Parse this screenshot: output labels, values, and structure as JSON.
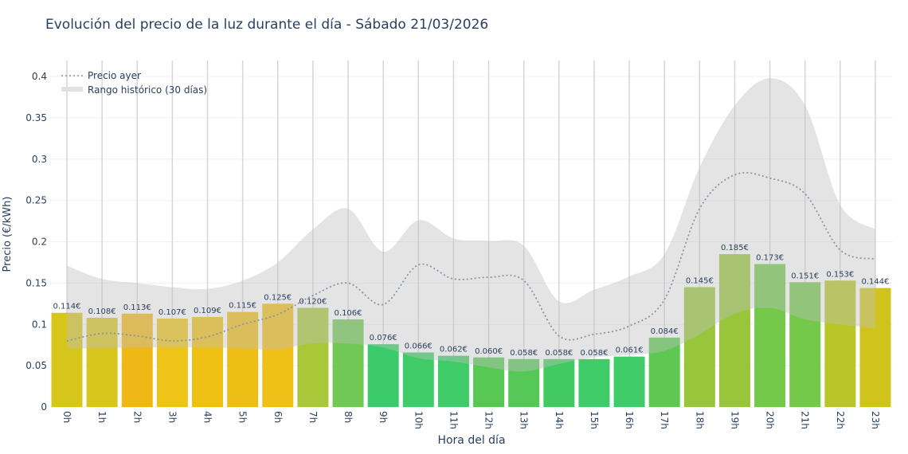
{
  "chart_data": {
    "type": "bar",
    "title": "Evolución del precio de la luz durante el día - Sábado 21/03/2026",
    "xlabel": "Hora del día",
    "ylabel": "Precio (€/kWh)",
    "ylim": [
      0,
      0.42
    ],
    "yticks": [
      0,
      0.05,
      0.1,
      0.15,
      0.2,
      0.25,
      0.3,
      0.35,
      0.4
    ],
    "ytick_labels": [
      "0",
      "0.05",
      "0.1",
      "0.15",
      "0.2",
      "0.25",
      "0.3",
      "0.35",
      "0.4"
    ],
    "grid": true,
    "legend_position": "top-left",
    "categories": [
      "0h",
      "1h",
      "2h",
      "3h",
      "4h",
      "5h",
      "6h",
      "7h",
      "8h",
      "9h",
      "10h",
      "11h",
      "12h",
      "13h",
      "14h",
      "15h",
      "16h",
      "17h",
      "18h",
      "19h",
      "20h",
      "21h",
      "22h",
      "23h"
    ],
    "values": [
      0.114,
      0.108,
      0.113,
      0.107,
      0.109,
      0.115,
      0.125,
      0.12,
      0.106,
      0.076,
      0.066,
      0.062,
      0.06,
      0.058,
      0.058,
      0.058,
      0.061,
      0.084,
      0.145,
      0.185,
      0.173,
      0.151,
      0.153,
      0.144
    ],
    "data_labels": [
      "0.114€",
      "0.108€",
      "0.113€",
      "0.107€",
      "0.109€",
      "0.115€",
      "0.125€",
      "0.120€",
      "0.106€",
      "0.076€",
      "0.066€",
      "0.062€",
      "0.060€",
      "0.058€",
      "0.058€",
      "0.058€",
      "0.061€",
      "0.084€",
      "0.145€",
      "0.185€",
      "0.173€",
      "0.151€",
      "0.153€",
      "0.144€"
    ],
    "bar_colors": [
      "#d6c61c",
      "#d8c61e",
      "#f0b816",
      "#eec418",
      "#efc014",
      "#efbe16",
      "#f0c018",
      "#a8c83a",
      "#72c855",
      "#3ccb6a",
      "#3ecb68",
      "#3ecb68",
      "#58c855",
      "#55c858",
      "#42ca62",
      "#3ecb68",
      "#3ecb68",
      "#5ec852",
      "#98c63a",
      "#98c63a",
      "#74c84a",
      "#74c84a",
      "#b8c628",
      "#d0c41c"
    ],
    "series": [
      {
        "name": "Precio ayer",
        "type": "line",
        "style": "dotted",
        "color": "#8a94a6",
        "values": [
          0.08,
          0.089,
          0.086,
          0.08,
          0.085,
          0.1,
          0.112,
          0.135,
          0.15,
          0.124,
          0.172,
          0.155,
          0.157,
          0.153,
          0.086,
          0.088,
          0.098,
          0.13,
          0.24,
          0.281,
          0.277,
          0.258,
          0.19,
          0.179
        ]
      },
      {
        "name": "Rango histórico (30 días)",
        "type": "band",
        "color": "#c8c8c8",
        "upper": [
          0.171,
          0.155,
          0.15,
          0.145,
          0.143,
          0.153,
          0.175,
          0.215,
          0.24,
          0.188,
          0.226,
          0.204,
          0.201,
          0.195,
          0.128,
          0.142,
          0.158,
          0.185,
          0.29,
          0.365,
          0.398,
          0.365,
          0.245,
          0.215
        ],
        "lower": [
          0.071,
          0.071,
          0.072,
          0.072,
          0.072,
          0.071,
          0.07,
          0.077,
          0.077,
          0.072,
          0.059,
          0.055,
          0.048,
          0.043,
          0.052,
          0.06,
          0.063,
          0.068,
          0.088,
          0.113,
          0.12,
          0.106,
          0.1,
          0.095
        ]
      }
    ]
  }
}
